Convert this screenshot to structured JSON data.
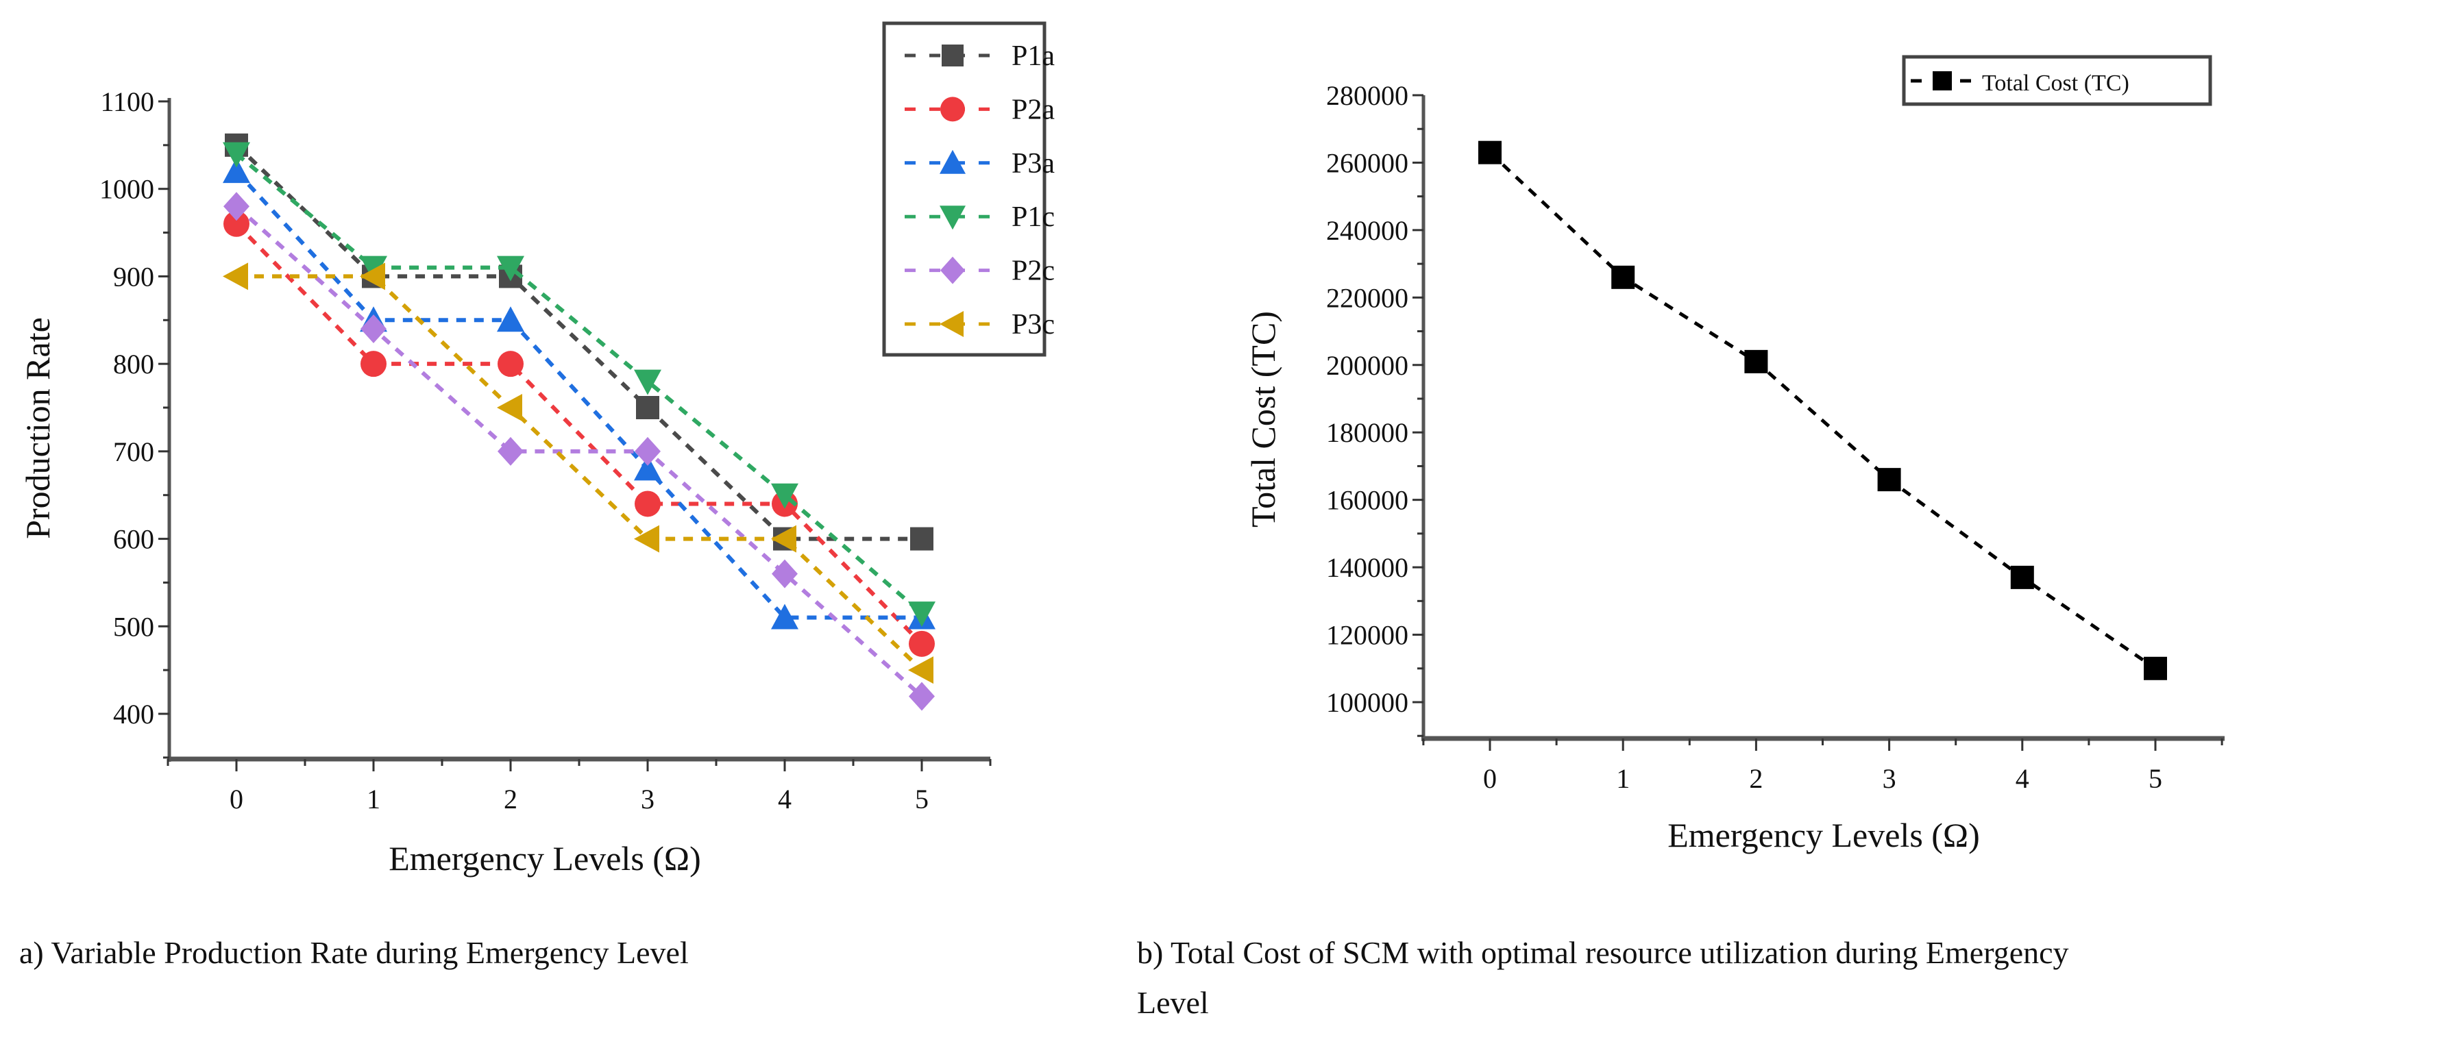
{
  "chart_data": [
    {
      "type": "line",
      "title": "",
      "xlabel": "Emergency Levels (Ω)",
      "ylabel": "Production Rate",
      "x": [
        0,
        1,
        2,
        3,
        4,
        5
      ],
      "xticks": [
        "0",
        "1",
        "2",
        "3",
        "4",
        "5"
      ],
      "yticks": [
        "400",
        "500",
        "600",
        "700",
        "800",
        "900",
        "1000",
        "1100"
      ],
      "xlim": [
        -0.48,
        5.5
      ],
      "ylim": [
        350,
        1100
      ],
      "legend_position": "top-right",
      "series": [
        {
          "name": "P1a",
          "marker": "square",
          "color": "#4a4a4a",
          "values": [
            1050,
            900,
            900,
            750,
            600,
            600
          ]
        },
        {
          "name": "P2a",
          "marker": "circle",
          "color": "#ee3a3f",
          "values": [
            960,
            800,
            800,
            640,
            640,
            480
          ]
        },
        {
          "name": "P3a",
          "marker": "triangle-up",
          "color": "#1f6fe0",
          "values": [
            1020,
            850,
            850,
            680,
            510,
            510
          ]
        },
        {
          "name": "P1c",
          "marker": "triangle-down",
          "color": "#2fa862",
          "values": [
            1040,
            910,
            910,
            780,
            650,
            515
          ]
        },
        {
          "name": "P2c",
          "marker": "diamond",
          "color": "#b27ddf",
          "values": [
            980,
            840,
            700,
            700,
            560,
            420
          ]
        },
        {
          "name": "P3c",
          "marker": "triangle-left",
          "color": "#d4a106",
          "values": [
            900,
            900,
            750,
            600,
            600,
            450
          ]
        }
      ],
      "caption": "a) Variable Production Rate during Emergency Level"
    },
    {
      "type": "line",
      "title": "",
      "xlabel": "Emergency Levels (Ω)",
      "ylabel": "Total Cost (TC)",
      "x": [
        0,
        1,
        2,
        3,
        4,
        5
      ],
      "xticks": [
        "0",
        "1",
        "2",
        "3",
        "4",
        "5"
      ],
      "yticks": [
        "100000",
        "120000",
        "140000",
        "160000",
        "180000",
        "200000",
        "220000",
        "240000",
        "260000",
        "280000"
      ],
      "xlim": [
        -0.5,
        5.5
      ],
      "ylim": [
        90000,
        280000
      ],
      "legend_position": "top-right",
      "series": [
        {
          "name": "Total Cost (TC)",
          "marker": "square",
          "color": "#000000",
          "values": [
            263000,
            226000,
            201000,
            166000,
            137000,
            110000
          ]
        }
      ],
      "caption_line1": "b) Total Cost of SCM with optimal resource utilization during Emergency",
      "caption_line2": "Level"
    }
  ]
}
